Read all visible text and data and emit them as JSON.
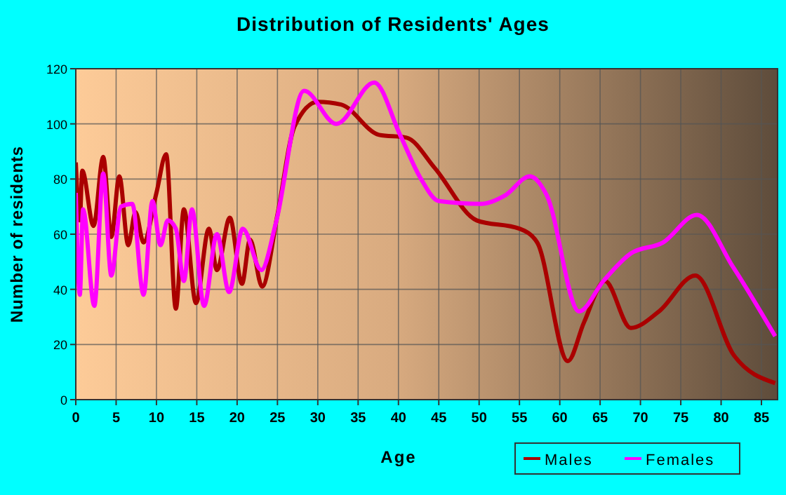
{
  "chart_data": {
    "type": "line",
    "title": "Distribution of Residents' Ages",
    "xlabel": "Age",
    "ylabel": "Number of residents",
    "xlim": [
      0,
      87
    ],
    "xticks": [
      0,
      5,
      10,
      15,
      20,
      25,
      30,
      35,
      40,
      45,
      50,
      55,
      60,
      65,
      70,
      75,
      80,
      85
    ],
    "ylim": [
      0,
      120
    ],
    "yticks": [
      0,
      20,
      40,
      60,
      80,
      100,
      120
    ],
    "grid": true,
    "legend": "bottom right",
    "line_style": "solid",
    "series": [
      {
        "name": "Males",
        "color": "#aa0000",
        "x": [
          0,
          0.5,
          0.8,
          2.2,
          3.4,
          4.4,
          5.4,
          6.5,
          7.4,
          8.4,
          10,
          11.2,
          12.4,
          13.4,
          14.9,
          16.5,
          17.5,
          19.1,
          20.6,
          21.6,
          23.1,
          25,
          27.1,
          30,
          32.9,
          37.6,
          41,
          44.5,
          49.7,
          55,
          57.2,
          61,
          63,
          65.6,
          68.8,
          72.3,
          76.8,
          81.6,
          86.7
        ],
        "values": [
          86,
          65,
          83,
          63,
          88,
          59,
          81,
          56,
          68,
          57,
          75,
          89,
          33,
          69,
          35,
          62,
          47,
          66,
          42,
          58,
          41,
          67,
          99,
          108,
          107,
          96,
          95,
          84,
          65,
          62,
          57,
          14,
          28,
          43,
          26,
          32,
          45,
          16,
          6
        ]
      },
      {
        "name": "Females",
        "color": "#ff00ff",
        "x": [
          0,
          0.5,
          0.9,
          2.3,
          3.4,
          4.4,
          5.6,
          7,
          8.4,
          9.5,
          10.5,
          11.4,
          12.4,
          13.4,
          14.4,
          15.9,
          17.5,
          19,
          20.7,
          23,
          24.8,
          28.3,
          32.3,
          37,
          40.2,
          42.8,
          45,
          50.3,
          53.2,
          56.3,
          58.4,
          62.4,
          65.4,
          68.8,
          72.8,
          77,
          81.5,
          86.7
        ],
        "values": [
          75,
          38,
          69,
          34,
          82,
          45,
          70,
          71,
          38,
          72,
          56,
          65,
          62,
          43,
          69,
          34,
          60,
          39,
          62,
          47,
          64,
          112,
          100,
          115,
          96,
          80,
          72,
          71,
          74,
          81,
          74,
          32,
          43,
          53,
          57,
          67,
          48,
          23
        ]
      }
    ]
  }
}
